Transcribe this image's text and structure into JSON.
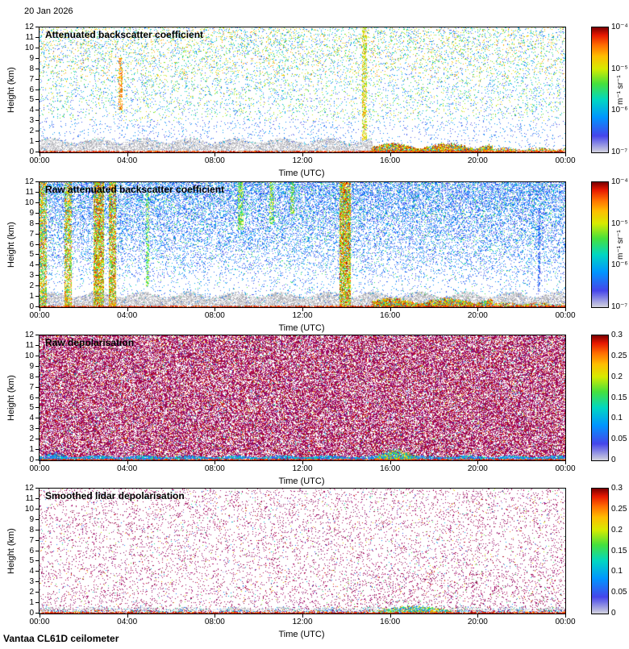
{
  "header": {
    "date": "20 Jan 2026"
  },
  "footer": {
    "instrument": "Vantaa CL61D ceilometer"
  },
  "axes": {
    "x_label": "Time (UTC)",
    "y_label": "Height (km)",
    "x_ticks": [
      "00:00",
      "04:00",
      "08:00",
      "12:00",
      "16:00",
      "20:00",
      "00:00"
    ],
    "x_tick_hours": [
      0,
      4,
      8,
      12,
      16,
      20,
      24
    ],
    "y_ticks": [
      "12",
      "11",
      "10",
      "9",
      "8",
      "7",
      "6",
      "5",
      "4",
      "3",
      "2",
      "1",
      "0"
    ]
  },
  "colormap": [
    [
      0,
      "#d0d0de"
    ],
    [
      0.13,
      "#4646eb"
    ],
    [
      0.28,
      "#0096ff"
    ],
    [
      0.42,
      "#00d7c3"
    ],
    [
      0.55,
      "#46e13c"
    ],
    [
      0.67,
      "#d7eb00"
    ],
    [
      0.77,
      "#ffbe00"
    ],
    [
      0.86,
      "#ff6e00"
    ],
    [
      0.94,
      "#e81900"
    ],
    [
      1,
      "#800000"
    ]
  ],
  "depol_color": "#960f5f",
  "chart_data": [
    {
      "type": "heatmap",
      "render": "sparse_backscatter",
      "title": "Attenuated backscatter coefficient",
      "xlabel": "Time (UTC)",
      "ylabel": "Height (km)",
      "x_range_hours": [
        0,
        24
      ],
      "y_range_km": [
        0,
        12
      ],
      "seed": 11,
      "noise": {
        "dots": 17000
      },
      "colorbar": {
        "scale": "log",
        "min": "1e-7",
        "max": "1e-4",
        "ticks": [
          "10⁻⁴",
          "10⁻⁵",
          "10⁻⁶",
          "10⁻⁷"
        ],
        "unit": "m⁻¹ sr⁻¹"
      },
      "features": [
        {
          "kind": "gray_band",
          "hours": [
            0,
            15.2
          ],
          "km": [
            0,
            1.35
          ],
          "density": 0.55
        },
        {
          "kind": "gray_band",
          "hours": [
            15.2,
            24
          ],
          "km": [
            0,
            0.35
          ],
          "density": 0.22
        },
        {
          "kind": "column",
          "hour": 3.7,
          "width_hours": 0.16,
          "km": [
            4,
            9
          ],
          "t": [
            0.7,
            0.92
          ],
          "density": 0.5
        },
        {
          "kind": "column",
          "hour": 14.85,
          "width_hours": 0.2,
          "km": [
            1.2,
            12
          ],
          "t": [
            0.55,
            0.85
          ],
          "density": 0.5
        },
        {
          "kind": "surface_layer",
          "hours": [
            15.2,
            20.7
          ],
          "km_max": 0.95,
          "density": 0.92
        },
        {
          "kind": "surface_layer",
          "hours": [
            20.7,
            24
          ],
          "km_max": 0.5,
          "density": 0.6
        },
        {
          "kind": "ground_line"
        }
      ]
    },
    {
      "type": "heatmap",
      "render": "dense_raw",
      "title": "Raw attenuated backscatter coefficient",
      "xlabel": "Time (UTC)",
      "ylabel": "Height (km)",
      "x_range_hours": [
        0,
        24
      ],
      "y_range_km": [
        0,
        12
      ],
      "seed": 22,
      "noise": {
        "p_top": 0.5,
        "p_low": 0.055
      },
      "colorbar": {
        "scale": "log",
        "min": "1e-7",
        "max": "1e-4",
        "ticks": [
          "10⁻⁴",
          "10⁻⁵",
          "10⁻⁶",
          "10⁻⁷"
        ],
        "unit": "m⁻¹ sr⁻¹"
      },
      "features": [
        {
          "kind": "gray_band",
          "hours": [
            0,
            24
          ],
          "km": [
            0,
            1.45
          ],
          "density": 0.6
        },
        {
          "kind": "column",
          "hour": 0.15,
          "width_hours": 0.3,
          "km": [
            0,
            12
          ],
          "t": [
            0.4,
            0.95
          ],
          "density": 0.65
        },
        {
          "kind": "column",
          "hour": 1.3,
          "width_hours": 0.3,
          "km": [
            0,
            12
          ],
          "t": [
            0.45,
            0.95
          ],
          "density": 0.6
        },
        {
          "kind": "column",
          "hour": 2.7,
          "width_hours": 0.45,
          "km": [
            0,
            12
          ],
          "t": [
            0.45,
            1.0
          ],
          "density": 0.75
        },
        {
          "kind": "column",
          "hour": 3.35,
          "width_hours": 0.3,
          "km": [
            0,
            12
          ],
          "t": [
            0.45,
            1.0
          ],
          "density": 0.7
        },
        {
          "kind": "column",
          "hour": 4.95,
          "width_hours": 0.12,
          "km": [
            2,
            11
          ],
          "t": [
            0.4,
            0.7
          ],
          "density": 0.45
        },
        {
          "kind": "column",
          "hour": 9.2,
          "width_hours": 0.25,
          "km": [
            7.5,
            12
          ],
          "t": [
            0.45,
            0.72
          ],
          "density": 0.5
        },
        {
          "kind": "column",
          "hour": 10.6,
          "width_hours": 0.2,
          "km": [
            8,
            12
          ],
          "t": [
            0.45,
            0.72
          ],
          "density": 0.45
        },
        {
          "kind": "column",
          "hour": 11.55,
          "width_hours": 0.18,
          "km": [
            9,
            12
          ],
          "t": [
            0.45,
            0.72
          ],
          "density": 0.45
        },
        {
          "kind": "column",
          "hour": 13.95,
          "width_hours": 0.5,
          "km": [
            0,
            12
          ],
          "t": [
            0.45,
            1.0
          ],
          "density": 0.75
        },
        {
          "kind": "column",
          "hour": 22.8,
          "width_hours": 0.1,
          "km": [
            1.5,
            9.5
          ],
          "t": [
            0.08,
            0.28
          ],
          "density": 0.55
        },
        {
          "kind": "surface_layer",
          "hours": [
            15.2,
            20.7
          ],
          "km_max": 0.95,
          "density": 0.92
        },
        {
          "kind": "surface_layer",
          "hours": [
            20.7,
            24
          ],
          "km_max": 0.5,
          "density": 0.6
        },
        {
          "kind": "ground_line"
        }
      ]
    },
    {
      "type": "heatmap",
      "render": "dense_depol",
      "title": "Raw depolarisation",
      "xlabel": "Time (UTC)",
      "ylabel": "Height (km)",
      "x_range_hours": [
        0,
        24
      ],
      "y_range_km": [
        0,
        12
      ],
      "seed": 33,
      "noise": {
        "density": 0.62
      },
      "colorbar": {
        "scale": "linear",
        "min": 0,
        "max": 0.3,
        "ticks": [
          "0.3",
          "0.25",
          "0.2",
          "0.15",
          "0.1",
          "0.05",
          "0"
        ]
      },
      "features": [
        {
          "kind": "cool_band",
          "hours": [
            0,
            24
          ],
          "km": [
            0,
            0.42
          ],
          "density": 0.85
        },
        {
          "kind": "cool_blob",
          "hours": [
            0,
            1.4
          ],
          "km_max": 0.85,
          "density": 0.5
        },
        {
          "kind": "rainbow_blob",
          "hours": [
            15.3,
            17.2
          ],
          "km_max": 1.15,
          "density": 0.85
        },
        {
          "kind": "ground_line"
        }
      ]
    },
    {
      "type": "heatmap",
      "render": "sparse_depol",
      "title": "Smoothed lidar depolarisation",
      "xlabel": "Time (UTC)",
      "ylabel": "Height (km)",
      "x_range_hours": [
        0,
        24
      ],
      "y_range_km": [
        0,
        12
      ],
      "seed": 44,
      "noise": {
        "density": 0.085
      },
      "colorbar": {
        "scale": "linear",
        "min": 0,
        "max": 0.3,
        "ticks": [
          "0.3",
          "0.25",
          "0.2",
          "0.15",
          "0.1",
          "0.05",
          "0"
        ]
      },
      "features": [
        {
          "kind": "gray_band",
          "hours": [
            0,
            24
          ],
          "km": [
            0.3,
            0.6
          ],
          "density": 0.4
        },
        {
          "kind": "mixed_band",
          "hours": [
            0,
            24
          ],
          "km": [
            0,
            0.32
          ],
          "density": 0.55
        },
        {
          "kind": "rainbow_blob",
          "hours": [
            15.4,
            18.8
          ],
          "km_max": 0.8,
          "density": 0.7
        },
        {
          "kind": "ground_line"
        }
      ]
    }
  ]
}
